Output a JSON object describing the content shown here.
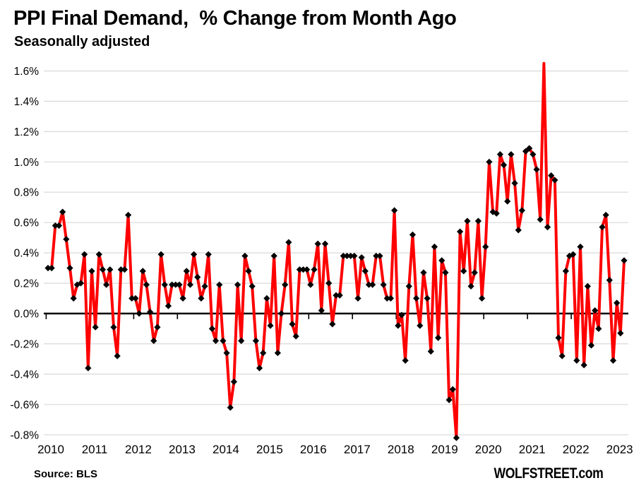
{
  "page": {
    "title": "PPI Final Demand,  % Change from Month Ago",
    "subtitle": "Seasonally adjusted",
    "source_note": "Source: BLS",
    "watermark": "WOLFSTREET.com"
  },
  "chart_data": {
    "type": "line",
    "title": "PPI Final Demand,  % Change from Month Ago",
    "subtitle": "Seasonally adjusted",
    "xlabel": "",
    "ylabel": "",
    "grid": "horizontal",
    "legend": "none",
    "ylim": [
      -0.8,
      1.6
    ],
    "y_step": 0.2,
    "y_tick_labels": [
      "1.6%",
      "1.4%",
      "1.2%",
      "1.0%",
      "0.8%",
      "0.6%",
      "0.4%",
      "0.2%",
      "0.0%",
      "-0.2%",
      "-0.4%",
      "-0.6%",
      "-0.8%"
    ],
    "x_tick_labels": [
      "2010",
      "2011",
      "2012",
      "2013",
      "2014",
      "2015",
      "2016",
      "2017",
      "2018",
      "2019",
      "2020",
      "2021",
      "2022",
      "2023"
    ],
    "line_color": "#fe0000",
    "marker": "diamond",
    "marker_color": "#000000",
    "grid_color": "#d9d9d9",
    "axis_color": "#000000",
    "series": [
      {
        "name": "PPI Final Demand, % change month over month, seasonally adjusted",
        "start_year": 2010,
        "start_month": 1,
        "freq": "monthly",
        "values": [
          0.3,
          0.3,
          0.58,
          0.58,
          0.67,
          0.49,
          0.3,
          0.1,
          0.19,
          0.2,
          0.39,
          -0.36,
          0.28,
          -0.09,
          0.39,
          0.29,
          0.19,
          0.29,
          -0.09,
          -0.28,
          0.29,
          0.29,
          0.65,
          0.1,
          0.1,
          0.0,
          0.28,
          0.19,
          0.01,
          -0.18,
          -0.09,
          0.39,
          0.19,
          0.05,
          0.19,
          0.19,
          0.19,
          0.1,
          0.28,
          0.19,
          0.39,
          0.24,
          0.1,
          0.18,
          0.39,
          -0.1,
          -0.18,
          0.19,
          -0.18,
          -0.26,
          -0.62,
          -0.45,
          0.19,
          -0.18,
          0.38,
          0.28,
          0.18,
          -0.18,
          -0.36,
          -0.26,
          0.1,
          -0.08,
          0.38,
          -0.26,
          0.0,
          0.19,
          0.47,
          -0.07,
          -0.15,
          0.29,
          0.29,
          0.29,
          0.19,
          0.29,
          0.46,
          0.02,
          0.46,
          0.2,
          -0.07,
          0.12,
          0.12,
          0.38,
          0.38,
          0.38,
          0.38,
          0.1,
          0.37,
          0.28,
          0.19,
          0.19,
          0.38,
          0.38,
          0.19,
          0.1,
          0.1,
          0.68,
          -0.08,
          -0.01,
          -0.31,
          0.18,
          0.52,
          0.1,
          -0.08,
          0.27,
          0.1,
          -0.25,
          0.44,
          -0.16,
          0.35,
          0.27,
          -0.57,
          -0.5,
          -0.82,
          0.54,
          0.28,
          0.61,
          0.18,
          0.27,
          0.61,
          0.1,
          0.44,
          1.0,
          0.67,
          0.66,
          1.05,
          0.98,
          0.74,
          1.05,
          0.86,
          0.55,
          0.68,
          1.07,
          1.09,
          1.05,
          0.95,
          0.62,
          1.65,
          0.57,
          0.91,
          0.88,
          -0.16,
          -0.28,
          0.28,
          0.38,
          0.39,
          -0.31,
          0.44,
          -0.34,
          0.18,
          -0.21,
          0.02,
          -0.1,
          0.57,
          0.65,
          0.22,
          -0.31,
          0.07,
          -0.13,
          0.35
        ]
      }
    ]
  }
}
